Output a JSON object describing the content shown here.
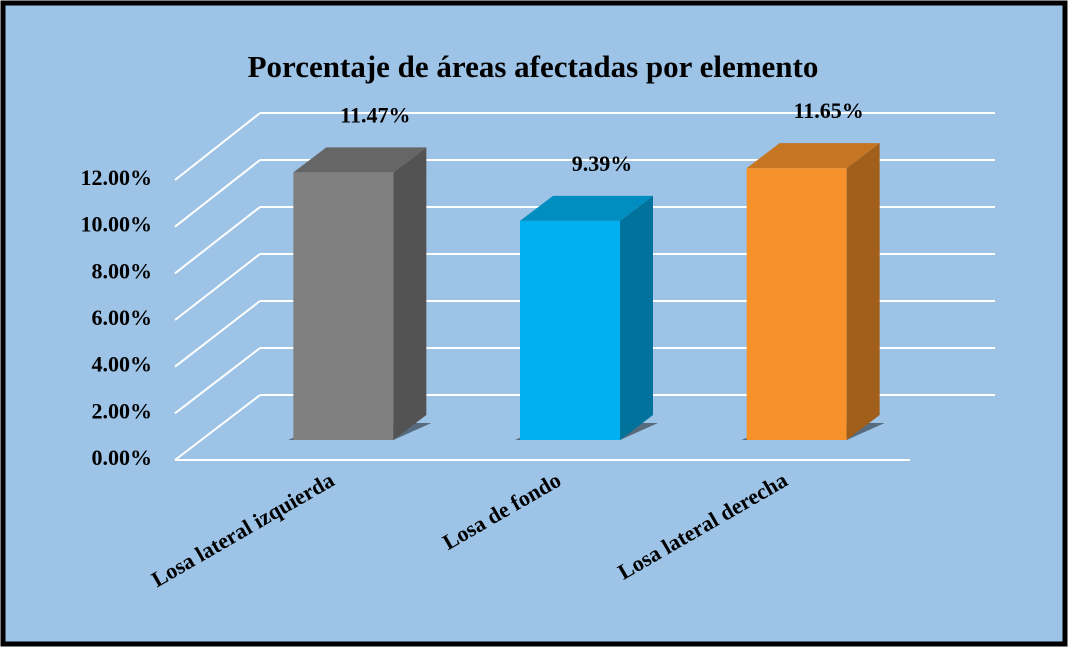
{
  "chart_data": {
    "type": "bar3d",
    "title": "Porcentaje de áreas afectadas por elemento",
    "categories": [
      "Losa lateral izquierda",
      "Losa de fondo",
      "Losa lateral derecha"
    ],
    "values": [
      11.47,
      9.39,
      11.65
    ],
    "value_labels": [
      "11.47%",
      "9.39%",
      "11.65%"
    ],
    "colors": [
      "#808080",
      "#00b0f0",
      "#f7922a"
    ],
    "ylim": [
      0,
      12
    ],
    "yticks": [
      {
        "value": 0,
        "label": "0.00%"
      },
      {
        "value": 2,
        "label": "2.00%"
      },
      {
        "value": 4,
        "label": "4.00%"
      },
      {
        "value": 6,
        "label": "6.00%"
      },
      {
        "value": 8,
        "label": "8.00%"
      },
      {
        "value": 10,
        "label": "10.00%"
      },
      {
        "value": 12,
        "label": "12.00%"
      }
    ],
    "grid": true
  }
}
